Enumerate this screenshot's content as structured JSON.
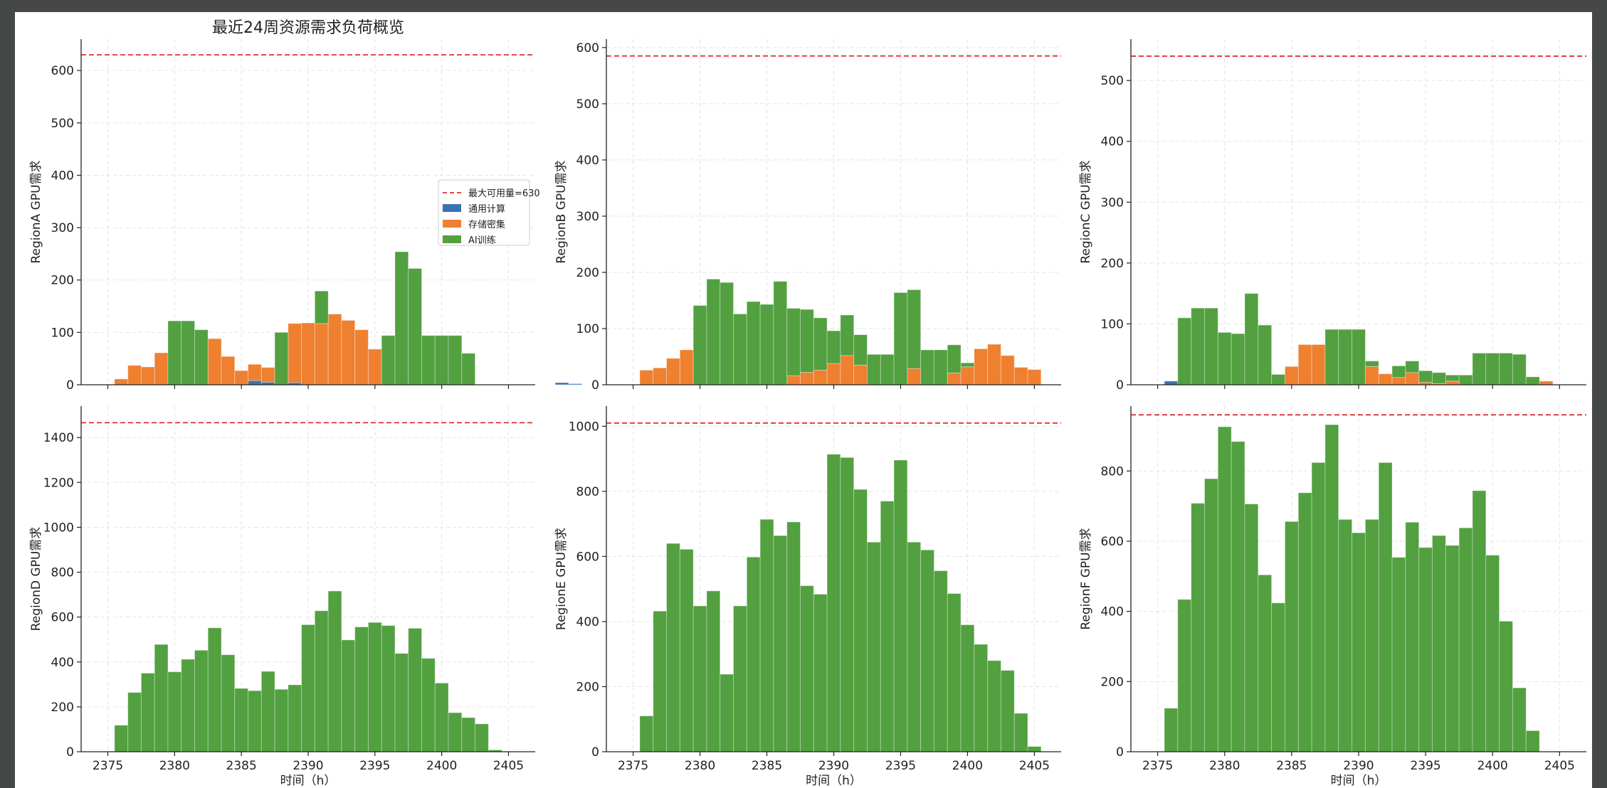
{
  "figure_title": "最近24周资源需求负荷概览",
  "colors": {
    "cpu": "#3b73b1",
    "storage": "#ee8030",
    "ai": "#52a040",
    "capacity": "#e03030",
    "grid": "#e3e3e3",
    "axis": "#222222"
  },
  "chart_data": [
    {
      "type": "bar",
      "stacked": true,
      "ylabel": "RegionA GPU需求",
      "xlabel": "",
      "title": "最近24周资源需求负荷概览",
      "capacity": 630,
      "ylim": [
        0,
        660
      ],
      "yticks": [
        0,
        100,
        200,
        300,
        400,
        500,
        600
      ],
      "xticks": [
        2375,
        2380,
        2385,
        2390,
        2395,
        2400,
        2405
      ],
      "show_xticks": false,
      "legend": {
        "position": "right",
        "entries": [
          "最大可用量=630",
          "通用计算",
          "存储密集",
          "AI训练"
        ]
      },
      "bin_start": 2375.5,
      "bin_width": 1,
      "series": [
        {
          "name": "通用计算",
          "values": [
            0,
            0,
            0,
            0,
            0,
            0,
            0,
            0,
            0,
            0,
            8,
            5,
            0,
            4,
            0,
            0,
            0,
            0,
            0,
            0,
            0,
            0,
            0,
            0,
            0,
            0,
            0,
            0,
            0,
            0,
            0,
            0,
            0,
            4,
            2
          ]
        },
        {
          "name": "存储密集",
          "values": [
            11,
            37,
            34,
            61,
            0,
            0,
            0,
            88,
            54,
            27,
            31,
            28,
            0,
            113,
            118,
            117,
            135,
            123,
            105,
            68,
            0,
            0,
            0,
            0,
            0,
            0,
            0,
            0,
            0,
            0,
            0,
            0,
            0,
            0,
            0
          ]
        },
        {
          "name": "AI训练",
          "values": [
            0,
            0,
            0,
            0,
            122,
            122,
            105,
            0,
            0,
            0,
            0,
            0,
            100,
            0,
            0,
            62,
            0,
            0,
            0,
            0,
            94,
            254,
            222,
            94,
            94,
            94,
            60,
            0,
            0,
            0,
            0,
            0,
            0,
            0,
            0
          ]
        }
      ]
    },
    {
      "type": "bar",
      "stacked": true,
      "ylabel": "RegionB GPU需求",
      "xlabel": "",
      "capacity": 585,
      "ylim": [
        0,
        615
      ],
      "yticks": [
        0,
        100,
        200,
        300,
        400,
        500,
        600
      ],
      "xticks": [
        2375,
        2380,
        2385,
        2390,
        2395,
        2400,
        2405
      ],
      "show_xticks": false,
      "bin_start": 2375.5,
      "bin_width": 1,
      "series": [
        {
          "name": "通用计算",
          "values": [
            0,
            0,
            0,
            0,
            0,
            0,
            0,
            0,
            0,
            0,
            0,
            0,
            0,
            0,
            0,
            0,
            0,
            0,
            0,
            0,
            0,
            0,
            0,
            0,
            0,
            0,
            0,
            0,
            0,
            0,
            0,
            0,
            0,
            0,
            0
          ]
        },
        {
          "name": "存储密集",
          "values": [
            26,
            30,
            47,
            62,
            0,
            0,
            0,
            0,
            0,
            0,
            0,
            16,
            22,
            26,
            38,
            52,
            35,
            0,
            0,
            0,
            29,
            0,
            0,
            21,
            32,
            64,
            72,
            52,
            31,
            27,
            0,
            0,
            0,
            0,
            0
          ]
        },
        {
          "name": "AI训练",
          "values": [
            0,
            0,
            0,
            0,
            141,
            188,
            182,
            126,
            148,
            143,
            184,
            120,
            112,
            93,
            58,
            72,
            54,
            54,
            54,
            164,
            140,
            62,
            62,
            50,
            7,
            0,
            0,
            0,
            0,
            0,
            0,
            0,
            0,
            0,
            0
          ]
        }
      ]
    },
    {
      "type": "bar",
      "stacked": true,
      "ylabel": "RegionC GPU需求",
      "xlabel": "",
      "capacity": 540,
      "ylim": [
        0,
        568
      ],
      "yticks": [
        0,
        100,
        200,
        300,
        400,
        500
      ],
      "xticks": [
        2375,
        2380,
        2385,
        2390,
        2395,
        2400,
        2405
      ],
      "show_xticks": false,
      "bin_start": 2375.5,
      "bin_width": 1,
      "series": [
        {
          "name": "通用计算",
          "values": [
            6,
            0,
            0,
            0,
            0,
            0,
            0,
            0,
            0,
            0,
            0,
            0,
            0,
            0,
            0,
            0,
            0,
            0,
            0,
            0,
            0,
            0,
            0,
            0,
            0,
            0,
            0,
            0,
            0,
            0,
            0,
            0,
            0,
            0,
            0
          ]
        },
        {
          "name": "存储密集",
          "values": [
            0,
            0,
            0,
            0,
            0,
            0,
            0,
            0,
            0,
            30,
            66,
            66,
            0,
            0,
            0,
            30,
            18,
            12,
            20,
            4,
            2,
            6,
            0,
            0,
            0,
            0,
            0,
            0,
            6,
            0,
            0,
            0,
            0,
            0,
            0
          ]
        },
        {
          "name": "AI训练",
          "values": [
            0,
            110,
            126,
            126,
            86,
            84,
            150,
            98,
            17,
            0,
            0,
            0,
            91,
            91,
            91,
            9,
            0,
            19,
            19,
            19,
            18,
            10,
            16,
            52,
            52,
            52,
            50,
            13,
            0,
            0,
            0,
            0,
            0,
            0,
            0
          ]
        }
      ]
    },
    {
      "type": "bar",
      "stacked": true,
      "ylabel": "RegionD GPU需求",
      "xlabel": "时间（h）",
      "capacity": 1466,
      "ylim": [
        0,
        1540
      ],
      "yticks": [
        0,
        200,
        400,
        600,
        800,
        1000,
        1200,
        1400
      ],
      "xticks": [
        2375,
        2380,
        2385,
        2390,
        2395,
        2400,
        2405
      ],
      "show_xticks": true,
      "bin_start": 2375.5,
      "bin_width": 1,
      "series": [
        {
          "name": "AI训练",
          "values": [
            118,
            264,
            350,
            478,
            356,
            412,
            452,
            552,
            432,
            282,
            272,
            358,
            278,
            298,
            566,
            628,
            716,
            498,
            556,
            576,
            562,
            438,
            550,
            416,
            306,
            174,
            152,
            124,
            8,
            0,
            0,
            0,
            0,
            0,
            0
          ]
        }
      ]
    },
    {
      "type": "bar",
      "stacked": true,
      "ylabel": "RegionE GPU需求",
      "xlabel": "时间（h）",
      "capacity": 1010,
      "ylim": [
        0,
        1062
      ],
      "yticks": [
        0,
        200,
        400,
        600,
        800,
        1000
      ],
      "xticks": [
        2375,
        2380,
        2385,
        2390,
        2395,
        2400,
        2405
      ],
      "show_xticks": true,
      "bin_start": 2375.5,
      "bin_width": 1,
      "series": [
        {
          "name": "AI训练",
          "values": [
            110,
            432,
            640,
            622,
            448,
            494,
            238,
            448,
            598,
            714,
            664,
            706,
            510,
            484,
            914,
            904,
            806,
            644,
            770,
            896,
            644,
            620,
            556,
            486,
            390,
            330,
            280,
            250,
            118,
            16,
            0,
            0,
            0,
            0,
            0
          ]
        }
      ]
    },
    {
      "type": "bar",
      "stacked": true,
      "ylabel": "RegionF GPU需求",
      "xlabel": "时间（h）",
      "capacity": 960,
      "ylim": [
        0,
        985
      ],
      "yticks": [
        0,
        200,
        400,
        600,
        800
      ],
      "xticks": [
        2375,
        2380,
        2385,
        2390,
        2395,
        2400,
        2405
      ],
      "show_xticks": true,
      "bin_start": 2375.5,
      "bin_width": 1,
      "series": [
        {
          "name": "AI训练",
          "values": [
            124,
            434,
            708,
            778,
            926,
            884,
            706,
            504,
            424,
            656,
            738,
            824,
            932,
            662,
            624,
            662,
            824,
            554,
            654,
            582,
            616,
            588,
            638,
            744,
            560,
            372,
            182,
            60,
            0,
            0,
            0,
            0,
            0,
            0,
            0
          ]
        }
      ]
    }
  ]
}
